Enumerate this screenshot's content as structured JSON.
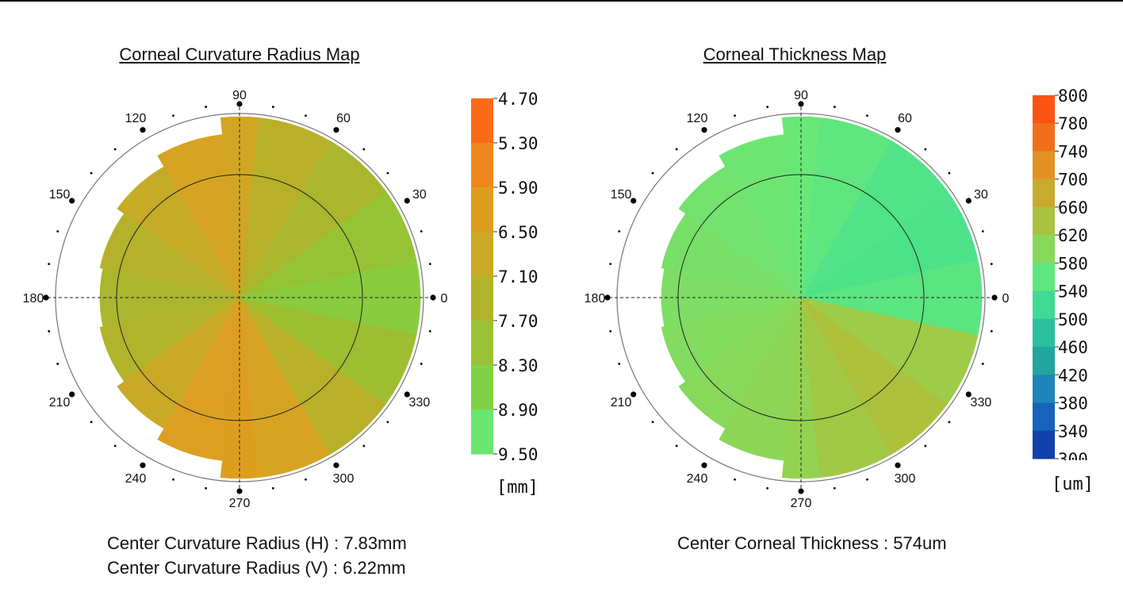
{
  "chart_data": [
    {
      "type": "heatmap",
      "title": "Corneal Curvature Radius Map",
      "angle_labels": [
        "0",
        "30",
        "60",
        "90",
        "120",
        "150",
        "180",
        "210",
        "240",
        "270",
        "300",
        "330"
      ],
      "colorbar": {
        "ticks": [
          "4.70",
          "5.30",
          "5.90",
          "6.50",
          "7.10",
          "7.70",
          "8.30",
          "8.90",
          "9.50"
        ],
        "min": 4.7,
        "max": 9.5,
        "unit": "[mm]",
        "colors": [
          "#ff5a14",
          "#f47a1a",
          "#e8961e",
          "#d6a422",
          "#bcae28",
          "#a6b82e",
          "#8ec93a",
          "#74dc52",
          "#5ef08a"
        ]
      },
      "sectors": [
        {
          "from": -12,
          "to": 12,
          "value": 8.4
        },
        {
          "from": 12,
          "to": 36,
          "value": 8.1
        },
        {
          "from": 36,
          "to": 60,
          "value": 7.6
        },
        {
          "from": 60,
          "to": 84,
          "value": 7.2
        },
        {
          "from": 84,
          "to": 96,
          "value": 6.6
        },
        {
          "from": 96,
          "to": 120,
          "value": 6.5
        },
        {
          "from": 120,
          "to": 144,
          "value": 6.9
        },
        {
          "from": 144,
          "to": 168,
          "value": 7.3
        },
        {
          "from": 168,
          "to": 192,
          "value": 7.6
        },
        {
          "from": 192,
          "to": 216,
          "value": 7.4
        },
        {
          "from": 216,
          "to": 240,
          "value": 6.8
        },
        {
          "from": 240,
          "to": 264,
          "value": 6.3
        },
        {
          "from": 264,
          "to": 276,
          "value": 6.2
        },
        {
          "from": 276,
          "to": 300,
          "value": 6.5
        },
        {
          "from": 300,
          "to": 324,
          "value": 7.2
        },
        {
          "from": 324,
          "to": 348,
          "value": 7.9
        }
      ],
      "stats": [
        {
          "label": "Center Curvature Radius (H)",
          "value": "7.83mm"
        },
        {
          "label": "Center Curvature Radius (V)",
          "value": "6.22mm"
        }
      ]
    },
    {
      "type": "heatmap",
      "title": "Corneal Thickness Map",
      "angle_labels": [
        "0",
        "30",
        "60",
        "90",
        "120",
        "150",
        "180",
        "210",
        "240",
        "270",
        "300",
        "330"
      ],
      "colorbar": {
        "ticks": [
          "800",
          "780",
          "740",
          "700",
          "660",
          "620",
          "580",
          "540",
          "500",
          "460",
          "420",
          "380",
          "340",
          "300"
        ],
        "min": 300,
        "max": 800,
        "unit": "[um]",
        "colors": [
          "#0b2f9e",
          "#1450b4",
          "#1a72c2",
          "#1f92b0",
          "#24ae96",
          "#2ec8a0",
          "#44e090",
          "#68e878",
          "#90d454",
          "#aebf3a",
          "#cca82c",
          "#e49022",
          "#f26e1a",
          "#ff4a10"
        ]
      },
      "sectors": [
        {
          "from": -12,
          "to": 12,
          "value": 555
        },
        {
          "from": 12,
          "to": 36,
          "value": 540
        },
        {
          "from": 36,
          "to": 60,
          "value": 545
        },
        {
          "from": 60,
          "to": 84,
          "value": 560
        },
        {
          "from": 84,
          "to": 96,
          "value": 570
        },
        {
          "from": 96,
          "to": 120,
          "value": 575
        },
        {
          "from": 120,
          "to": 144,
          "value": 580
        },
        {
          "from": 144,
          "to": 168,
          "value": 585
        },
        {
          "from": 168,
          "to": 192,
          "value": 590
        },
        {
          "from": 192,
          "to": 216,
          "value": 595
        },
        {
          "from": 216,
          "to": 240,
          "value": 600
        },
        {
          "from": 240,
          "to": 264,
          "value": 605
        },
        {
          "from": 264,
          "to": 276,
          "value": 612
        },
        {
          "from": 276,
          "to": 300,
          "value": 630
        },
        {
          "from": 300,
          "to": 324,
          "value": 645
        },
        {
          "from": 324,
          "to": 348,
          "value": 625
        }
      ],
      "stats": [
        {
          "label": "Center Corneal Thickness",
          "value": "574um"
        }
      ]
    }
  ]
}
